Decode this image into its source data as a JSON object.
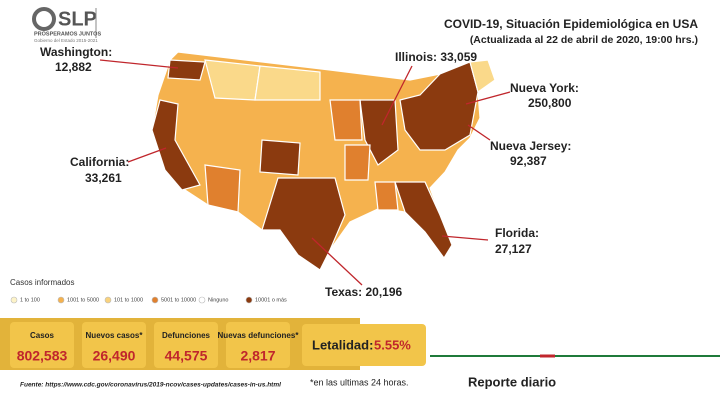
{
  "logo": {
    "mark": "SLP",
    "motto": "PROSPERAMOS JUNTOS",
    "government": "Gobierno del Estado 2015-2021"
  },
  "header": {
    "title": "COVID-19, Situación Epidemiológica en USA",
    "subtitle": "(Actualizada al 22 de abril de 2020, 19:00 hrs.)"
  },
  "callouts": [
    {
      "label": "Washington:",
      "value": "12,882"
    },
    {
      "label": "Illinois: 33,059"
    },
    {
      "label": "Nueva York:",
      "value": "250,800"
    },
    {
      "label": "Nueva Jersey:",
      "value": "92,387"
    },
    {
      "label": "California:",
      "value": "33,261"
    },
    {
      "label": "Florida:",
      "value": "27,127"
    },
    {
      "label": "Texas: 20,196"
    }
  ],
  "legend": {
    "title": "Casos informados",
    "items": [
      {
        "label": "1 to 100",
        "color": "#fdf3c8"
      },
      {
        "label": "1001 to 5000",
        "color": "#f5b24e"
      },
      {
        "label": "101 to 1000",
        "color": "#f9d27d"
      },
      {
        "label": "5001 to 10000",
        "color": "#e0802e"
      },
      {
        "label": "Ninguno",
        "color": "#ffffff"
      },
      {
        "label": "10001 o más",
        "color": "#8b3a0f"
      }
    ]
  },
  "stats": [
    {
      "label": "Casos",
      "value": "802,583"
    },
    {
      "label": "Nuevos casos*",
      "value": "26,490"
    },
    {
      "label": "Defunciones",
      "value": "44,575"
    },
    {
      "label": "Nuevas defunciones*",
      "value": "2,817"
    }
  ],
  "lethality": {
    "label": "Letalidad:",
    "value": "5.55%"
  },
  "footnote": "*en las ultimas 24 horas.",
  "source": "Fuente: https://www.cdc.gov/coronavirus/2019-ncov/cases-updates/cases-in-us.html",
  "report": "Reporte diario"
}
